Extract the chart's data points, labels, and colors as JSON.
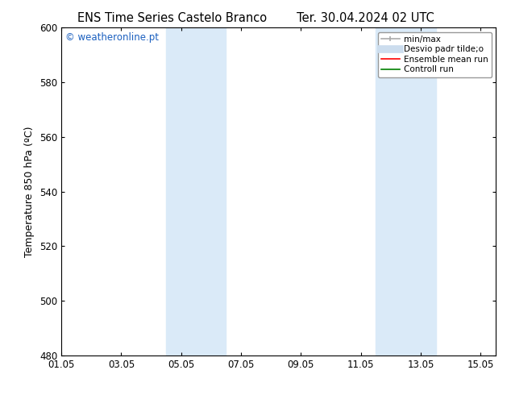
{
  "title_left": "ENS Time Series Castelo Branco",
  "title_right": "Ter. 30.04.2024 02 UTC",
  "ylabel": "Temperature 850 hPa (ºC)",
  "ylim": [
    480,
    600
  ],
  "yticks": [
    480,
    500,
    520,
    540,
    560,
    580,
    600
  ],
  "xlim": [
    0,
    14.5
  ],
  "xtick_labels": [
    "01.05",
    "03.05",
    "05.05",
    "07.05",
    "09.05",
    "11.05",
    "13.05",
    "15.05"
  ],
  "xtick_positions": [
    0,
    2,
    4,
    6,
    8,
    10,
    12,
    14
  ],
  "shaded_bands": [
    {
      "x_start": 3.5,
      "x_end": 5.5,
      "color": "#daeaf8"
    },
    {
      "x_start": 10.5,
      "x_end": 12.5,
      "color": "#daeaf8"
    }
  ],
  "watermark_text": "© weatheronline.pt",
  "watermark_color": "#1a5fbf",
  "legend_labels": [
    "min/max",
    "Desvio padr tilde;o",
    "Ensemble mean run",
    "Controll run"
  ],
  "legend_colors": [
    "#aaaaaa",
    "#ccddee",
    "red",
    "green"
  ],
  "bg_color": "#ffffff",
  "border_color": "#000000",
  "fig_width": 6.34,
  "fig_height": 4.9,
  "dpi": 100
}
